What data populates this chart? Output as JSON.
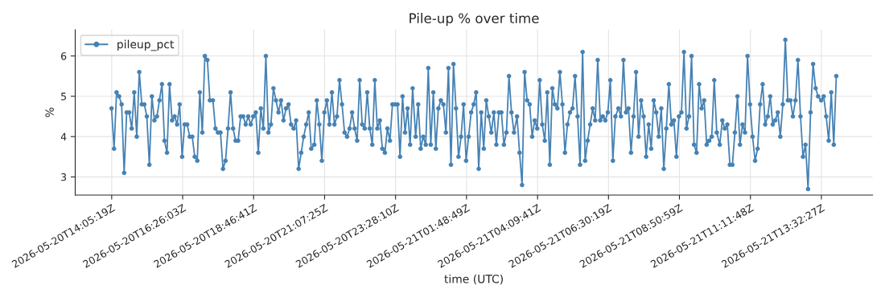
{
  "chart_data": {
    "type": "line",
    "title": "Pile-up % over time",
    "xlabel": "time (UTC)",
    "ylabel": "%",
    "x": [
      "2026-05-20T14:05",
      "2026-05-20T14:10",
      "2026-05-20T14:15",
      "2026-05-20T14:20",
      "2026-05-20T14:25",
      "2026-05-20T14:30",
      "2026-05-20T14:35",
      "2026-05-20T14:40",
      "2026-05-20T14:45",
      "2026-05-20T14:50",
      "2026-05-20T14:55",
      "2026-05-20T15:00",
      "2026-05-20T15:05",
      "2026-05-20T15:10",
      "2026-05-20T15:15",
      "2026-05-20T15:20",
      "2026-05-20T15:25",
      "2026-05-20T15:30",
      "2026-05-20T15:35",
      "2026-05-20T15:40",
      "2026-05-20T15:45",
      "2026-05-20T15:50",
      "2026-05-20T15:55",
      "2026-05-20T16:00",
      "2026-05-20T16:05",
      "2026-05-20T16:10",
      "2026-05-20T16:15",
      "2026-05-20T16:20",
      "2026-05-20T16:25",
      "2026-05-20T16:30",
      "2026-05-20T16:35",
      "2026-05-20T16:40",
      "2026-05-20T16:45",
      "2026-05-20T16:50",
      "2026-05-20T16:55",
      "2026-05-20T17:00",
      "2026-05-20T17:05",
      "2026-05-20T17:10",
      "2026-05-20T17:15",
      "2026-05-20T17:20",
      "2026-05-20T17:26",
      "2026-05-20T17:31",
      "2026-05-20T17:36",
      "2026-05-20T17:41",
      "2026-05-20T17:46",
      "2026-05-20T17:51",
      "2026-05-20T17:56",
      "2026-05-20T18:01",
      "2026-05-20T18:06",
      "2026-05-20T18:11",
      "2026-05-20T18:16",
      "2026-05-20T18:21",
      "2026-05-20T18:26",
      "2026-05-20T18:31",
      "2026-05-20T18:36",
      "2026-05-20T18:41",
      "2026-05-20T18:46",
      "2026-05-20T18:51",
      "2026-05-20T18:56",
      "2026-05-20T19:01",
      "2026-05-20T19:06",
      "2026-05-20T19:11",
      "2026-05-20T19:16",
      "2026-05-20T19:21",
      "2026-05-20T19:26",
      "2026-05-20T19:31",
      "2026-05-20T19:36",
      "2026-05-20T19:41",
      "2026-05-20T19:46",
      "2026-05-20T19:51",
      "2026-05-20T19:56",
      "2026-05-20T20:01",
      "2026-05-20T20:06",
      "2026-05-20T20:11",
      "2026-05-20T20:16",
      "2026-05-20T20:21",
      "2026-05-20T20:26",
      "2026-05-20T20:31",
      "2026-05-20T20:36",
      "2026-05-20T20:41",
      "2026-05-20T20:47",
      "2026-05-20T20:52",
      "2026-05-20T20:57",
      "2026-05-20T21:02",
      "2026-05-20T21:07",
      "2026-05-20T21:12",
      "2026-05-20T21:17",
      "2026-05-20T21:22",
      "2026-05-20T21:27",
      "2026-05-20T21:32",
      "2026-05-20T21:37",
      "2026-05-20T21:42",
      "2026-05-20T21:47",
      "2026-05-20T21:52",
      "2026-05-20T21:57",
      "2026-05-20T22:02",
      "2026-05-20T22:07",
      "2026-05-20T22:12",
      "2026-05-20T22:17",
      "2026-05-20T22:22",
      "2026-05-20T22:27",
      "2026-05-20T22:32",
      "2026-05-20T22:37",
      "2026-05-20T22:42",
      "2026-05-20T22:47",
      "2026-05-20T22:52",
      "2026-05-20T22:57",
      "2026-05-20T23:02",
      "2026-05-20T23:07",
      "2026-05-20T23:12",
      "2026-05-20T23:17",
      "2026-05-20T23:22",
      "2026-05-20T23:27",
      "2026-05-20T23:32",
      "2026-05-20T23:37",
      "2026-05-20T23:42",
      "2026-05-20T23:47",
      "2026-05-20T23:52",
      "2026-05-20T23:57",
      "2026-05-21T00:02",
      "2026-05-21T00:08",
      "2026-05-21T00:13",
      "2026-05-21T00:18",
      "2026-05-21T00:23",
      "2026-05-21T00:28",
      "2026-05-21T00:33",
      "2026-05-21T00:38",
      "2026-05-21T00:43",
      "2026-05-21T00:48",
      "2026-05-21T00:53",
      "2026-05-21T00:58",
      "2026-05-21T01:03",
      "2026-05-21T01:08",
      "2026-05-21T01:13",
      "2026-05-21T01:18",
      "2026-05-21T01:23",
      "2026-05-21T01:28",
      "2026-05-21T01:33",
      "2026-05-21T01:38",
      "2026-05-21T01:43",
      "2026-05-21T01:48",
      "2026-05-21T01:53",
      "2026-05-21T01:58",
      "2026-05-21T02:03",
      "2026-05-21T02:08",
      "2026-05-21T02:13",
      "2026-05-21T02:18",
      "2026-05-21T02:23",
      "2026-05-21T02:28",
      "2026-05-21T02:33",
      "2026-05-21T02:38",
      "2026-05-21T02:43",
      "2026-05-21T02:48",
      "2026-05-21T02:53",
      "2026-05-21T02:58",
      "2026-05-21T03:03",
      "2026-05-21T03:08",
      "2026-05-21T03:13",
      "2026-05-21T03:18",
      "2026-05-21T03:23",
      "2026-05-21T03:29",
      "2026-05-21T03:34",
      "2026-05-21T03:39",
      "2026-05-21T03:44",
      "2026-05-21T03:49",
      "2026-05-21T03:54",
      "2026-05-21T03:59",
      "2026-05-21T04:04",
      "2026-05-21T04:09",
      "2026-05-21T04:14",
      "2026-05-21T04:19",
      "2026-05-21T04:24",
      "2026-05-21T04:29",
      "2026-05-21T04:34",
      "2026-05-21T04:39",
      "2026-05-21T04:44",
      "2026-05-21T04:49",
      "2026-05-21T04:54",
      "2026-05-21T04:59",
      "2026-05-21T05:04",
      "2026-05-21T05:09",
      "2026-05-21T05:14",
      "2026-05-21T05:19",
      "2026-05-21T05:24",
      "2026-05-21T05:29",
      "2026-05-21T05:34",
      "2026-05-21T05:39",
      "2026-05-21T05:44",
      "2026-05-21T05:49",
      "2026-05-21T05:54",
      "2026-05-21T05:59",
      "2026-05-21T06:04",
      "2026-05-21T06:09",
      "2026-05-21T06:14",
      "2026-05-21T06:19",
      "2026-05-21T06:24",
      "2026-05-21T06:29",
      "2026-05-21T06:34",
      "2026-05-21T06:39",
      "2026-05-21T06:44",
      "2026-05-21T06:50",
      "2026-05-21T06:55",
      "2026-05-21T07:00",
      "2026-05-21T07:05",
      "2026-05-21T07:10",
      "2026-05-21T07:15",
      "2026-05-21T07:20",
      "2026-05-21T07:25",
      "2026-05-21T07:30",
      "2026-05-21T07:35",
      "2026-05-21T07:40",
      "2026-05-21T07:45",
      "2026-05-21T07:50",
      "2026-05-21T07:55",
      "2026-05-21T08:00",
      "2026-05-21T08:05",
      "2026-05-21T08:10",
      "2026-05-21T08:15",
      "2026-05-21T08:20",
      "2026-05-21T08:25",
      "2026-05-21T08:30",
      "2026-05-21T08:35",
      "2026-05-21T08:40",
      "2026-05-21T08:45",
      "2026-05-21T08:50",
      "2026-05-21T08:55",
      "2026-05-21T09:00",
      "2026-05-21T09:05",
      "2026-05-21T09:10",
      "2026-05-21T09:15",
      "2026-05-21T09:20",
      "2026-05-21T09:25",
      "2026-05-21T09:30",
      "2026-05-21T09:35",
      "2026-05-21T09:40",
      "2026-05-21T09:45",
      "2026-05-21T09:50",
      "2026-05-21T09:55",
      "2026-05-21T10:00",
      "2026-05-21T10:05",
      "2026-05-21T10:11",
      "2026-05-21T10:16",
      "2026-05-21T10:21",
      "2026-05-21T10:26",
      "2026-05-21T10:31",
      "2026-05-21T10:36",
      "2026-05-21T10:41",
      "2026-05-21T10:46",
      "2026-05-21T10:51",
      "2026-05-21T10:56",
      "2026-05-21T11:01",
      "2026-05-21T11:06",
      "2026-05-21T11:11",
      "2026-05-21T11:16",
      "2026-05-21T11:21",
      "2026-05-21T11:26",
      "2026-05-21T11:31",
      "2026-05-21T11:36",
      "2026-05-21T11:41",
      "2026-05-21T11:46",
      "2026-05-21T11:51",
      "2026-05-21T11:56",
      "2026-05-21T12:01",
      "2026-05-21T12:06",
      "2026-05-21T12:11",
      "2026-05-21T12:16",
      "2026-05-21T12:21",
      "2026-05-21T12:26",
      "2026-05-21T12:31",
      "2026-05-21T12:36",
      "2026-05-21T12:41",
      "2026-05-21T12:46",
      "2026-05-21T12:51",
      "2026-05-21T12:56",
      "2026-05-21T13:01",
      "2026-05-21T13:06",
      "2026-05-21T13:11",
      "2026-05-21T13:16",
      "2026-05-21T13:21",
      "2026-05-21T13:26",
      "2026-05-21T13:32",
      "2026-05-21T13:37",
      "2026-05-21T13:42",
      "2026-05-21T13:47",
      "2026-05-21T13:52",
      "2026-05-21T13:57",
      "2026-05-21T14:02"
    ],
    "series": [
      {
        "name": "pileup_pct",
        "color": "#4682b4",
        "values": [
          4.7,
          3.7,
          5.1,
          5.0,
          4.8,
          3.1,
          4.6,
          4.6,
          4.2,
          5.1,
          4.0,
          5.6,
          4.8,
          4.8,
          4.5,
          3.3,
          5.0,
          4.4,
          4.5,
          4.9,
          5.3,
          3.9,
          3.6,
          5.3,
          4.4,
          4.5,
          4.3,
          4.8,
          3.5,
          4.3,
          4.3,
          4.0,
          4.0,
          3.5,
          3.4,
          5.1,
          4.1,
          6.0,
          5.9,
          4.9,
          4.9,
          4.2,
          4.1,
          4.1,
          3.2,
          3.4,
          4.2,
          5.1,
          4.2,
          3.9,
          3.9,
          4.5,
          4.5,
          4.3,
          4.5,
          4.3,
          4.5,
          4.6,
          3.6,
          4.7,
          4.2,
          6.0,
          4.1,
          4.3,
          5.2,
          4.9,
          4.6,
          4.9,
          4.4,
          4.7,
          4.8,
          4.3,
          4.2,
          4.4,
          3.2,
          3.6,
          4.0,
          4.3,
          4.6,
          3.7,
          3.8,
          4.9,
          4.3,
          3.4,
          4.6,
          4.9,
          4.3,
          5.1,
          4.3,
          4.5,
          5.4,
          4.8,
          4.1,
          4.0,
          4.2,
          4.6,
          4.2,
          3.9,
          5.4,
          4.3,
          4.2,
          5.1,
          4.2,
          3.8,
          5.4,
          4.2,
          4.4,
          3.7,
          3.6,
          4.2,
          3.9,
          4.8,
          4.8,
          4.8,
          3.5,
          5.0,
          4.1,
          4.7,
          3.8,
          5.2,
          4.0,
          4.8,
          3.7,
          4.0,
          3.8,
          5.7,
          3.8,
          5.1,
          3.7,
          4.7,
          4.9,
          4.8,
          4.1,
          5.7,
          3.3,
          5.8,
          4.7,
          3.5,
          4.0,
          4.8,
          3.4,
          4.0,
          4.6,
          4.8,
          5.1,
          3.2,
          4.6,
          3.7,
          4.9,
          4.5,
          4.1,
          4.6,
          3.8,
          4.6,
          4.6,
          3.8,
          4.1,
          5.5,
          4.6,
          4.1,
          4.5,
          3.6,
          2.8,
          5.6,
          4.9,
          4.8,
          4.0,
          4.4,
          4.2,
          5.4,
          4.3,
          3.9,
          5.1,
          3.3,
          5.2,
          4.8,
          4.7,
          5.6,
          4.8,
          3.6,
          4.3,
          4.6,
          4.7,
          5.5,
          4.5,
          3.3,
          6.1,
          3.4,
          3.9,
          4.3,
          4.7,
          4.4,
          5.9,
          4.4,
          4.5,
          4.4,
          4.6,
          5.4,
          3.4,
          4.5,
          4.7,
          4.5,
          5.9,
          4.6,
          4.7,
          3.6,
          4.5,
          5.6,
          4.0,
          4.9,
          4.5,
          3.5,
          4.3,
          3.7,
          4.9,
          4.6,
          4.0,
          4.7,
          3.2,
          4.2,
          5.3,
          4.3,
          4.4,
          3.5,
          4.5,
          4.6,
          6.1,
          4.2,
          4.5,
          6.0,
          3.8,
          3.6,
          5.3,
          4.7,
          4.9,
          3.8,
          3.9,
          4.0,
          5.4,
          4.1,
          3.8,
          4.4,
          4.2,
          4.3,
          3.3,
          3.3,
          4.1,
          5.0,
          3.8,
          4.3,
          4.1,
          6.0,
          4.8,
          4.0,
          3.4,
          3.7,
          4.8,
          5.3,
          4.3,
          4.5,
          5.0,
          4.3,
          4.4,
          4.6,
          4.0,
          4.8,
          6.4,
          4.9,
          4.9,
          4.5,
          4.9,
          5.9,
          4.5,
          3.5,
          3.8,
          2.7,
          4.6,
          5.8,
          5.2,
          5.0,
          4.9,
          5.0,
          4.5,
          3.9,
          5.1,
          3.8,
          5.5
        ]
      }
    ],
    "xlim": [
      "2026-05-20T12:53",
      "2026-05-21T15:14"
    ],
    "xticks": [
      {
        "value": "2026-05-20T14:05:19",
        "label": "2026-05-20T14:05:19Z"
      },
      {
        "value": "2026-05-20T16:26:03",
        "label": "2026-05-20T16:26:03Z"
      },
      {
        "value": "2026-05-20T18:46:41",
        "label": "2026-05-20T18:46:41Z"
      },
      {
        "value": "2026-05-20T21:07:25",
        "label": "2026-05-20T21:07:25Z"
      },
      {
        "value": "2026-05-20T23:28:10",
        "label": "2026-05-20T23:28:10Z"
      },
      {
        "value": "2026-05-21T01:48:49",
        "label": "2026-05-21T01:48:49Z"
      },
      {
        "value": "2026-05-21T04:09:41",
        "label": "2026-05-21T04:09:41Z"
      },
      {
        "value": "2026-05-21T06:30:19",
        "label": "2026-05-21T06:30:19Z"
      },
      {
        "value": "2026-05-21T08:50:59",
        "label": "2026-05-21T08:50:59Z"
      },
      {
        "value": "2026-05-21T11:11:48",
        "label": "2026-05-21T11:11:48Z"
      },
      {
        "value": "2026-05-21T13:32:27",
        "label": "2026-05-21T13:32:27Z"
      }
    ],
    "ylim": [
      2.55,
      6.65
    ],
    "yticks": [
      3,
      4,
      5,
      6
    ],
    "grid": true,
    "legend": "top left",
    "marker": "circle",
    "line_style": "solid"
  }
}
